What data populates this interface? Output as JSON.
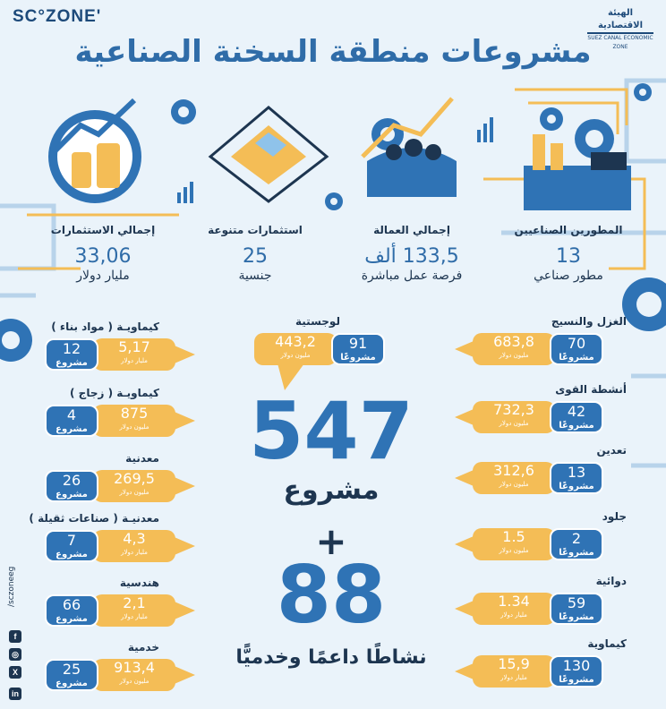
{
  "header": {
    "logo": "SC°ZONE'",
    "brand_line1": "الهيئة الاقتصادية",
    "brand_line2": "SUEZ CANAL ECONOMIC ZONE",
    "title": "مشروعات منطقة السخنة الصناعية"
  },
  "kpis": [
    {
      "label": "إجمالي الاستثمارات",
      "value": "33,06",
      "unit": "مليار دولار"
    },
    {
      "label": "استثمارات متنوعة",
      "value": "25",
      "unit": "جنسية"
    },
    {
      "label": "إجمالي العمالة",
      "value": "133,5 ألف",
      "unit": "فرصة عمل مباشرة"
    },
    {
      "label": "المطورين الصناعيين",
      "value": "13",
      "unit": "مطور صناعي"
    }
  ],
  "logistics": {
    "label": "لوجستية",
    "projects": "91",
    "projects_unit": "مشروعًا",
    "amount": "443,2",
    "amount_unit": "مليون دولار"
  },
  "left_sectors": [
    {
      "label": "كيماويـة ( مواد بناء )",
      "projects": "12",
      "projects_unit": "مشروع",
      "amount": "5,17",
      "amount_unit": "مليار دولار"
    },
    {
      "label": "كيماويـة ( زجاج )",
      "projects": "4",
      "projects_unit": "مشروع",
      "amount": "875",
      "amount_unit": "مليون دولار"
    },
    {
      "label": "معدنية",
      "projects": "26",
      "projects_unit": "مشروع",
      "amount": "269,5",
      "amount_unit": "مليون دولار"
    },
    {
      "label": "معدنيـة ( صناعات ثقيلة )",
      "projects": "7",
      "projects_unit": "مشروع",
      "amount": "4,3",
      "amount_unit": "مليار دولار"
    },
    {
      "label": "هندسية",
      "projects": "66",
      "projects_unit": "مشروع",
      "amount": "2,1",
      "amount_unit": "مليار دولار"
    },
    {
      "label": "خدمية",
      "projects": "25",
      "projects_unit": "مشروع",
      "amount": "913,4",
      "amount_unit": "مليون دولار"
    }
  ],
  "right_sectors": [
    {
      "label": "الغزل والنسيج",
      "projects": "70",
      "projects_unit": "مشروعًا",
      "amount": "683,8",
      "amount_unit": "مليون دولار"
    },
    {
      "label": "أنشطة القوى",
      "projects": "42",
      "projects_unit": "مشروعًا",
      "amount": "732,3",
      "amount_unit": "مليون دولار"
    },
    {
      "label": "تعدين",
      "projects": "13",
      "projects_unit": "مشروعًا",
      "amount": "312,6",
      "amount_unit": "مليون دولار"
    },
    {
      "label": "جلود",
      "projects": "2",
      "projects_unit": "مشروعًا",
      "amount": "1.5",
      "amount_unit": "مليون دولار"
    },
    {
      "label": "دوائية",
      "projects": "59",
      "projects_unit": "مشروعًا",
      "amount": "1.34",
      "amount_unit": "مليار دولار"
    },
    {
      "label": "كيماوية",
      "projects": "130",
      "projects_unit": "مشروعًا",
      "amount": "15,9",
      "amount_unit": "مليار دولار"
    }
  ],
  "center": {
    "total": "547",
    "total_label": "مشروع",
    "plus": "+",
    "activities": "88",
    "activities_label": "نشاطًا داعمًا وخدميًّا"
  },
  "social": {
    "handle": "/sczoneeg",
    "icons": [
      "in",
      "X",
      "◎",
      "f"
    ]
  },
  "colors": {
    "blue": "#2f73b5",
    "gold": "#f4bd56",
    "navy": "#1d3550"
  }
}
